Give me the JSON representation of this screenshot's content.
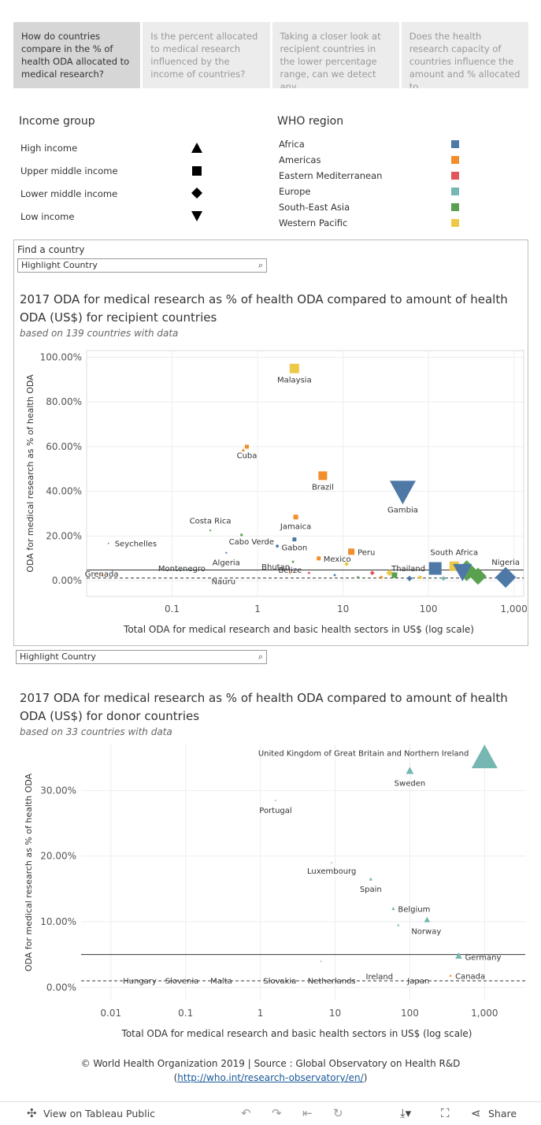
{
  "tabs": [
    {
      "label": "How do countries compare in the % of health ODA allocated to medical research?"
    },
    {
      "label": "Is the percent allocated to medical research influenced by the income of countries?"
    },
    {
      "label": "Taking a closer look at recipient countries in the lower percentage range, can we detect any"
    },
    {
      "label": "Does the health research capacity of countries influence the amount and % allocated to"
    }
  ],
  "legend": {
    "income_title": "Income group",
    "income_items": [
      {
        "label": "High income",
        "shape": "triangle-up"
      },
      {
        "label": "Upper middle income",
        "shape": "square"
      },
      {
        "label": "Lower middle income",
        "shape": "diamond"
      },
      {
        "label": "Low income",
        "shape": "triangle-down"
      }
    ],
    "region_title": "WHO region",
    "region_items": [
      {
        "label": "Africa",
        "color": "#4e79a7"
      },
      {
        "label": "Americas",
        "color": "#f28e2b"
      },
      {
        "label": "Eastern Mediterranean",
        "color": "#e15759"
      },
      {
        "label": "Europe",
        "color": "#76b7b2"
      },
      {
        "label": "South-East Asia",
        "color": "#59a14f"
      },
      {
        "label": "Western Pacific",
        "color": "#edc948"
      }
    ]
  },
  "find_label": "Find a country",
  "search_placeholder": "Highlight Country",
  "footer": {
    "line1": "© World Health Organization 2019 | Source : Global Observatory on Health R&D",
    "link": "http://who.int/research-observatory/en/"
  },
  "toolbar": {
    "view_label": "View on Tableau Public",
    "share_label": "Share"
  },
  "chart_data": [
    {
      "type": "scatter",
      "title": "2017 ODA for medical research as % of health ODA  compared to amount of health ODA (US$) for recipient countries",
      "subtitle": "based on 139 countries with data",
      "xlabel": "Total ODA for medical research and basic health sectors in US$ (log scale)",
      "ylabel": "ODA for medical research as % of health ODA",
      "x_scale": "log",
      "xlim": [
        0.01,
        1300
      ],
      "ylim": [
        -7,
        103
      ],
      "x_ticks": [
        "0.1",
        "1",
        "10",
        "100",
        "1,000"
      ],
      "y_ticks": [
        "0.00%",
        "20.00%",
        "40.00%",
        "60.00%",
        "80.00%",
        "100.00%"
      ],
      "reference_lines": [
        4.8,
        1.2
      ],
      "points": [
        {
          "label": "Malaysia",
          "x": 2.7,
          "y": 95,
          "income": "square",
          "color": "#edc948",
          "size": 12
        },
        {
          "label": "Cuba",
          "x": 0.75,
          "y": 60,
          "income": "square",
          "color": "#f28e2b",
          "size": 5
        },
        {
          "label": "",
          "x": 0.68,
          "y": 58.5,
          "income": "triangle-up",
          "color": "#f28e2b",
          "size": 4
        },
        {
          "label": "Brazil",
          "x": 5.8,
          "y": 47,
          "income": "square",
          "color": "#f28e2b",
          "size": 11
        },
        {
          "label": "Gambia",
          "x": 50,
          "y": 40,
          "income": "triangle-down",
          "color": "#4e79a7",
          "size": 30
        },
        {
          "label": "Jamaica",
          "x": 2.8,
          "y": 28.5,
          "income": "square",
          "color": "#f28e2b",
          "size": 6
        },
        {
          "label": "Costa Rica",
          "x": 0.28,
          "y": 22.5,
          "income": "square",
          "color": "#59a14f",
          "size": 2
        },
        {
          "label": "",
          "x": 0.65,
          "y": 20.5,
          "income": "square",
          "color": "#59a14f",
          "size": 3
        },
        {
          "label": "Gabon",
          "x": 2.7,
          "y": 18.5,
          "income": "square",
          "color": "#4e79a7",
          "size": 5
        },
        {
          "label": "Seychelles",
          "x": 0.018,
          "y": 16.8,
          "income": "triangle-up",
          "color": "#4e79a7",
          "size": 2
        },
        {
          "label": "Cabo Verde",
          "x": 1.7,
          "y": 15.5,
          "income": "diamond",
          "color": "#4e79a7",
          "size": 4
        },
        {
          "label": "Algeria",
          "x": 0.43,
          "y": 12.5,
          "income": "square",
          "color": "#4e79a7",
          "size": 2
        },
        {
          "label": "Peru",
          "x": 12.5,
          "y": 13,
          "income": "square",
          "color": "#f28e2b",
          "size": 8
        },
        {
          "label": "Mexico",
          "x": 5.2,
          "y": 10,
          "income": "square",
          "color": "#f28e2b",
          "size": 5
        },
        {
          "label": "Bhutan",
          "x": 2.6,
          "y": 8.5,
          "income": "diamond",
          "color": "#59a14f",
          "size": 3
        },
        {
          "label": "",
          "x": 11,
          "y": 7.5,
          "income": "diamond",
          "color": "#edc948",
          "size": 5
        },
        {
          "label": "South Africa",
          "x": 200,
          "y": 6.5,
          "income": "square",
          "color": "#edc948",
          "size": 12
        },
        {
          "label": "",
          "x": 120,
          "y": 5.5,
          "income": "square",
          "color": "#4e79a7",
          "size": 16
        },
        {
          "label": "",
          "x": 280,
          "y": 4.5,
          "income": "diamond",
          "color": "#59a14f",
          "size": 22
        },
        {
          "label": "",
          "x": 380,
          "y": 2,
          "income": "diamond",
          "color": "#59a14f",
          "size": 18
        },
        {
          "label": "",
          "x": 250,
          "y": 4,
          "income": "triangle-down",
          "color": "#4e79a7",
          "size": 22
        },
        {
          "label": "Nigeria",
          "x": 800,
          "y": 1.5,
          "income": "diamond",
          "color": "#4e79a7",
          "size": 22
        },
        {
          "label": "Thailand",
          "x": 80,
          "y": 1.5,
          "income": "square",
          "color": "#edc948",
          "size": 4
        },
        {
          "label": "",
          "x": 35,
          "y": 3.5,
          "income": "diamond",
          "color": "#edc948",
          "size": 7
        },
        {
          "label": "",
          "x": 40,
          "y": 2.5,
          "income": "square",
          "color": "#59a14f",
          "size": 7
        },
        {
          "label": "",
          "x": 22,
          "y": 3.5,
          "income": "diamond",
          "color": "#e15759",
          "size": 5
        },
        {
          "label": "",
          "x": 28,
          "y": 1.5,
          "income": "diamond",
          "color": "#f28e2b",
          "size": 4
        },
        {
          "label": "",
          "x": 60,
          "y": 1,
          "income": "diamond",
          "color": "#4e79a7",
          "size": 6
        },
        {
          "label": "",
          "x": 150,
          "y": 1,
          "income": "diamond",
          "color": "#76b7b2",
          "size": 5
        },
        {
          "label": "Belize",
          "x": 2.4,
          "y": 3.5,
          "income": "square",
          "color": "#f28e2b",
          "size": 2
        },
        {
          "label": "",
          "x": 4,
          "y": 3.5,
          "income": "diamond",
          "color": "#e15759",
          "size": 3
        },
        {
          "label": "",
          "x": 8,
          "y": 2.5,
          "income": "diamond",
          "color": "#4e79a7",
          "size": 3
        },
        {
          "label": "",
          "x": 15,
          "y": 1.5,
          "income": "triangle-down",
          "color": "#59a14f",
          "size": 3
        },
        {
          "label": "Montenegro",
          "x": 0.13,
          "y": 5,
          "income": "square",
          "color": "#76b7b2",
          "size": 2
        },
        {
          "label": "Grenada",
          "x": 0.015,
          "y": 2.5,
          "income": "square",
          "color": "#f28e2b",
          "size": 1
        },
        {
          "label": "Nauru",
          "x": 0.4,
          "y": 0.3,
          "income": "triangle-up",
          "color": "#edc948",
          "size": 2
        }
      ]
    },
    {
      "type": "scatter",
      "title": "2017 ODA for medical research as % of health ODA compared to amount of health ODA (US$) for donor countries",
      "subtitle": "based on 33 countries with data",
      "xlabel": "Total ODA for medical research and basic health sectors in US$ (log scale)",
      "ylabel": "ODA for medical research as % of health ODA",
      "x_scale": "log",
      "xlim": [
        0.004,
        3500
      ],
      "ylim": [
        -2,
        37
      ],
      "x_ticks": [
        "0.01",
        "0.1",
        "1",
        "10",
        "100",
        "1,000"
      ],
      "y_ticks": [
        "0.00%",
        "10.00%",
        "20.00%",
        "30.00%"
      ],
      "reference_lines": [
        5.0,
        1.0
      ],
      "points": [
        {
          "label": "United Kingdom of Great Britain and Northern Ireland",
          "x": 1000,
          "y": 35,
          "income": "triangle-up",
          "color": "#76b7b2",
          "size": 30
        },
        {
          "label": "Sweden",
          "x": 100,
          "y": 33,
          "income": "triangle-up",
          "color": "#76b7b2",
          "size": 9
        },
        {
          "label": "Portugal",
          "x": 1.6,
          "y": 28.5,
          "income": "triangle-up",
          "color": "#76b7b2",
          "size": 2
        },
        {
          "label": "Luxembourg",
          "x": 9,
          "y": 19,
          "income": "triangle-up",
          "color": "#76b7b2",
          "size": 2
        },
        {
          "label": "Spain",
          "x": 30,
          "y": 16.5,
          "income": "triangle-up",
          "color": "#76b7b2",
          "size": 4
        },
        {
          "label": "Belgium",
          "x": 60,
          "y": 12,
          "income": "triangle-up",
          "color": "#76b7b2",
          "size": 4
        },
        {
          "label": "Norway",
          "x": 170,
          "y": 10.3,
          "income": "triangle-up",
          "color": "#76b7b2",
          "size": 7
        },
        {
          "label": "",
          "x": 70,
          "y": 9.5,
          "income": "triangle-up",
          "color": "#76b7b2",
          "size": 3
        },
        {
          "label": "Germany",
          "x": 450,
          "y": 4.8,
          "income": "triangle-up",
          "color": "#76b7b2",
          "size": 8
        },
        {
          "label": "",
          "x": 6.5,
          "y": 4,
          "income": "triangle-up",
          "color": "#76b7b2",
          "size": 1
        },
        {
          "label": "Canada",
          "x": 350,
          "y": 1.8,
          "income": "triangle-up",
          "color": "#f28e2b",
          "size": 3
        },
        {
          "label": "Ireland",
          "x": 55,
          "y": 1,
          "income": "triangle-up",
          "color": "#76b7b2",
          "size": 2
        },
        {
          "label": "Japan",
          "x": 130,
          "y": 0.8,
          "income": "triangle-up",
          "color": "#edc948",
          "size": 2
        },
        {
          "label": "Netherlands",
          "x": 9,
          "y": 0.8,
          "income": "triangle-up",
          "color": "#76b7b2",
          "size": 2
        },
        {
          "label": "Slovakia",
          "x": 1.5,
          "y": 0.8,
          "income": "triangle-up",
          "color": "#76b7b2",
          "size": 1
        },
        {
          "label": "Malta",
          "x": 0.3,
          "y": 0.8,
          "income": "triangle-up",
          "color": "#76b7b2",
          "size": 1
        },
        {
          "label": "Slovenia",
          "x": 0.07,
          "y": 0.8,
          "income": "triangle-up",
          "color": "#76b7b2",
          "size": 1
        },
        {
          "label": "Hungary",
          "x": 0.015,
          "y": 0.8,
          "income": "triangle-up",
          "color": "#76b7b2",
          "size": 1
        }
      ]
    }
  ]
}
